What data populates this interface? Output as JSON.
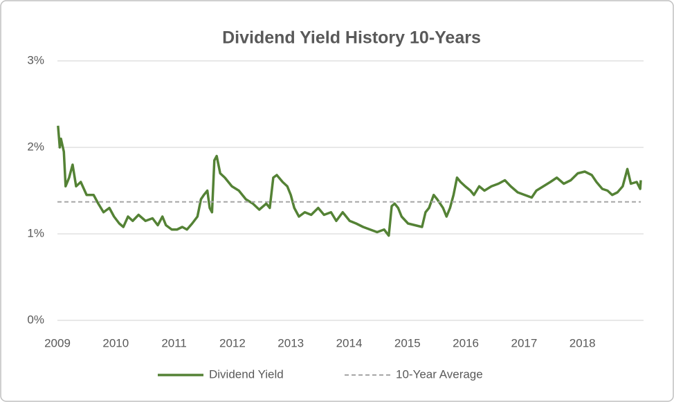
{
  "chart_data": {
    "type": "line",
    "title": "Dividend Yield History 10-Years",
    "xlim": [
      2009,
      2019
    ],
    "xticks": [
      2009,
      2010,
      2011,
      2012,
      2013,
      2014,
      2015,
      2016,
      2017,
      2018
    ],
    "ylim": [
      0,
      3
    ],
    "yticks": [
      {
        "value": 0,
        "label": "0%"
      },
      {
        "value": 1,
        "label": "1%"
      },
      {
        "value": 2,
        "label": "2%"
      },
      {
        "value": 3,
        "label": "3%"
      }
    ],
    "grid": true,
    "legend": "bottom",
    "series": [
      {
        "name": "Dividend Yield",
        "color": "#548235",
        "x": [
          2009.01,
          2009.04,
          2009.06,
          2009.11,
          2009.14,
          2009.2,
          2009.26,
          2009.32,
          2009.4,
          2009.5,
          2009.62,
          2009.7,
          2009.79,
          2009.89,
          2009.97,
          2010.06,
          2010.13,
          2010.21,
          2010.29,
          2010.39,
          2010.51,
          2010.63,
          2010.72,
          2010.8,
          2010.86,
          2010.96,
          2011.05,
          2011.14,
          2011.22,
          2011.31,
          2011.4,
          2011.46,
          2011.51,
          2011.57,
          2011.61,
          2011.65,
          2011.69,
          2011.73,
          2011.79,
          2011.87,
          2011.99,
          2012.11,
          2012.23,
          2012.35,
          2012.46,
          2012.58,
          2012.64,
          2012.7,
          2012.76,
          2012.86,
          2012.94,
          2013.0,
          2013.06,
          2013.14,
          2013.24,
          2013.35,
          2013.47,
          2013.57,
          2013.69,
          2013.78,
          2013.89,
          2014.01,
          2014.12,
          2014.24,
          2014.36,
          2014.48,
          2014.6,
          2014.68,
          2014.73,
          2014.78,
          2014.84,
          2014.9,
          2015.01,
          2015.13,
          2015.25,
          2015.31,
          2015.37,
          2015.45,
          2015.51,
          2015.61,
          2015.67,
          2015.73,
          2015.79,
          2015.85,
          2015.91,
          2015.99,
          2016.08,
          2016.14,
          2016.23,
          2016.32,
          2016.44,
          2016.56,
          2016.67,
          2016.77,
          2016.89,
          2017.01,
          2017.13,
          2017.21,
          2017.33,
          2017.45,
          2017.56,
          2017.68,
          2017.8,
          2017.92,
          2018.04,
          2018.16,
          2018.24,
          2018.34,
          2018.43,
          2018.51,
          2018.6,
          2018.69,
          2018.77,
          2018.83,
          2018.93,
          2018.99,
          2019.0
        ],
        "values": [
          2.25,
          2.0,
          2.1,
          1.95,
          1.55,
          1.65,
          1.8,
          1.55,
          1.6,
          1.45,
          1.45,
          1.35,
          1.25,
          1.3,
          1.2,
          1.12,
          1.08,
          1.2,
          1.15,
          1.22,
          1.15,
          1.18,
          1.1,
          1.2,
          1.1,
          1.05,
          1.05,
          1.08,
          1.05,
          1.12,
          1.2,
          1.4,
          1.45,
          1.5,
          1.3,
          1.25,
          1.85,
          1.9,
          1.7,
          1.65,
          1.55,
          1.5,
          1.4,
          1.35,
          1.28,
          1.35,
          1.3,
          1.65,
          1.68,
          1.6,
          1.55,
          1.45,
          1.3,
          1.2,
          1.25,
          1.22,
          1.3,
          1.22,
          1.25,
          1.15,
          1.25,
          1.15,
          1.12,
          1.08,
          1.05,
          1.02,
          1.05,
          0.98,
          1.32,
          1.35,
          1.3,
          1.2,
          1.12,
          1.1,
          1.08,
          1.25,
          1.3,
          1.45,
          1.4,
          1.3,
          1.2,
          1.3,
          1.45,
          1.65,
          1.6,
          1.55,
          1.5,
          1.45,
          1.55,
          1.5,
          1.55,
          1.58,
          1.62,
          1.55,
          1.48,
          1.45,
          1.42,
          1.5,
          1.55,
          1.6,
          1.65,
          1.58,
          1.62,
          1.7,
          1.72,
          1.68,
          1.6,
          1.52,
          1.5,
          1.45,
          1.48,
          1.55,
          1.75,
          1.58,
          1.6,
          1.52,
          1.62
        ]
      },
      {
        "name": "10-Year Average",
        "color": "#a6a6a6",
        "dash": true,
        "x": [
          2009,
          2019
        ],
        "values": [
          1.37,
          1.37
        ]
      }
    ]
  }
}
